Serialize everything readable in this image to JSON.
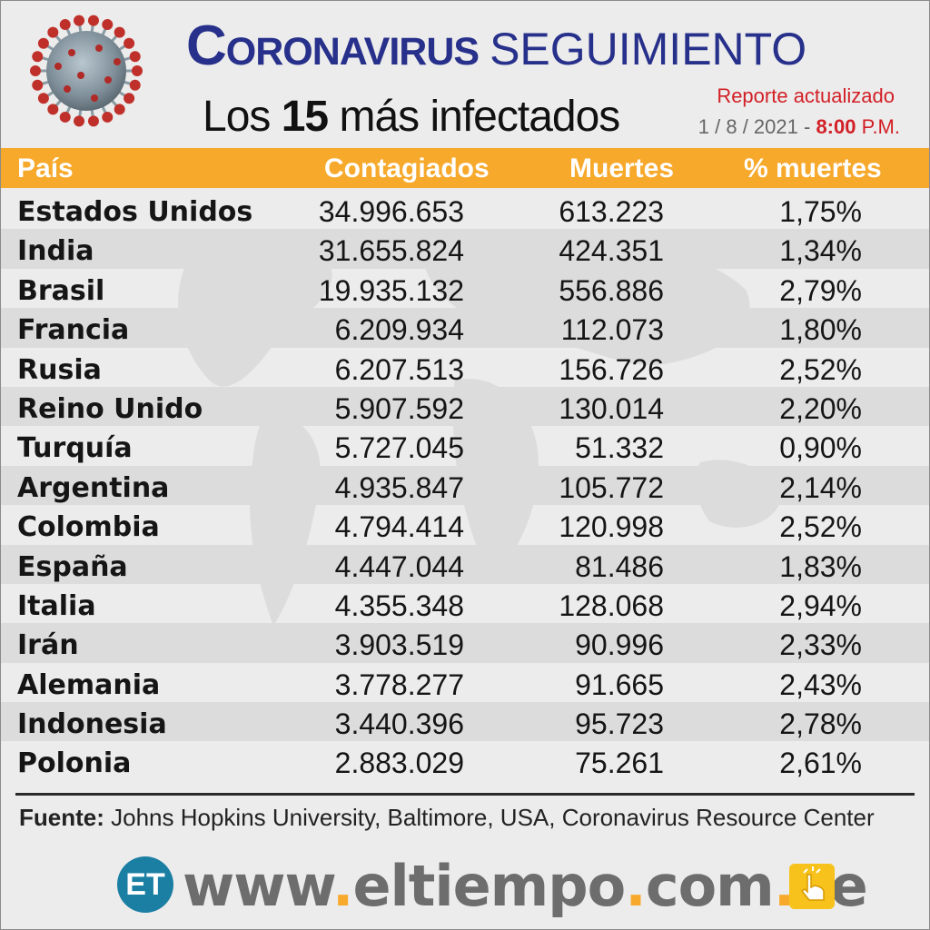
{
  "header": {
    "title_main": "Coronavirus",
    "title_secondary": "SEGUIMIENTO",
    "subtitle_prefix": "Los",
    "subtitle_number": "15",
    "subtitle_suffix": "más infectados",
    "report_label": "Reporte actualizado",
    "date": "1 / 8 / 2021 -",
    "time": "8:00",
    "time_suffix": "P.M."
  },
  "colors": {
    "title": "#27308a",
    "header_bar": "#f7a92c",
    "accent_red": "#d21f26",
    "logo_blue": "#1b7fa3"
  },
  "chart_data": {
    "type": "table",
    "columns": [
      "País",
      "Contagiados",
      "Muertes",
      "% muertes"
    ],
    "rows": [
      [
        "Estados Unidos",
        "34.996.653",
        "613.223",
        "1,75%"
      ],
      [
        "India",
        "31.655.824",
        "424.351",
        "1,34%"
      ],
      [
        "Brasil",
        "19.935.132",
        "556.886",
        "2,79%"
      ],
      [
        "Francia",
        "6.209.934",
        "112.073",
        "1,80%"
      ],
      [
        "Rusia",
        "6.207.513",
        "156.726",
        "2,52%"
      ],
      [
        "Reino Unido",
        "5.907.592",
        "130.014",
        "2,20%"
      ],
      [
        "Turquía",
        "5.727.045",
        "51.332",
        "0,90%"
      ],
      [
        "Argentina",
        "4.935.847",
        "105.772",
        "2,14%"
      ],
      [
        "Colombia",
        "4.794.414",
        "120.998",
        "2,52%"
      ],
      [
        "España",
        "4.447.044",
        "81.486",
        "1,83%"
      ],
      [
        "Italia",
        "4.355.348",
        "128.068",
        "2,94%"
      ],
      [
        "Irán",
        "3.903.519",
        "90.996",
        "2,33%"
      ],
      [
        "Alemania",
        "3.778.277",
        "91.665",
        "2,43%"
      ],
      [
        "Indonesia",
        "3.440.396",
        "95.723",
        "2,78%"
      ],
      [
        "Polonia",
        "2.883.029",
        "75.261",
        "2,61%"
      ]
    ]
  },
  "footer": {
    "source_label": "Fuente:",
    "source_text": "Johns Hopkins University, Baltimore, USA, Coronavirus Resource Center",
    "logo_text": "ET",
    "url": "www.eltiempo.com.ve",
    "hand_icon": "pointing-hand-icon"
  }
}
